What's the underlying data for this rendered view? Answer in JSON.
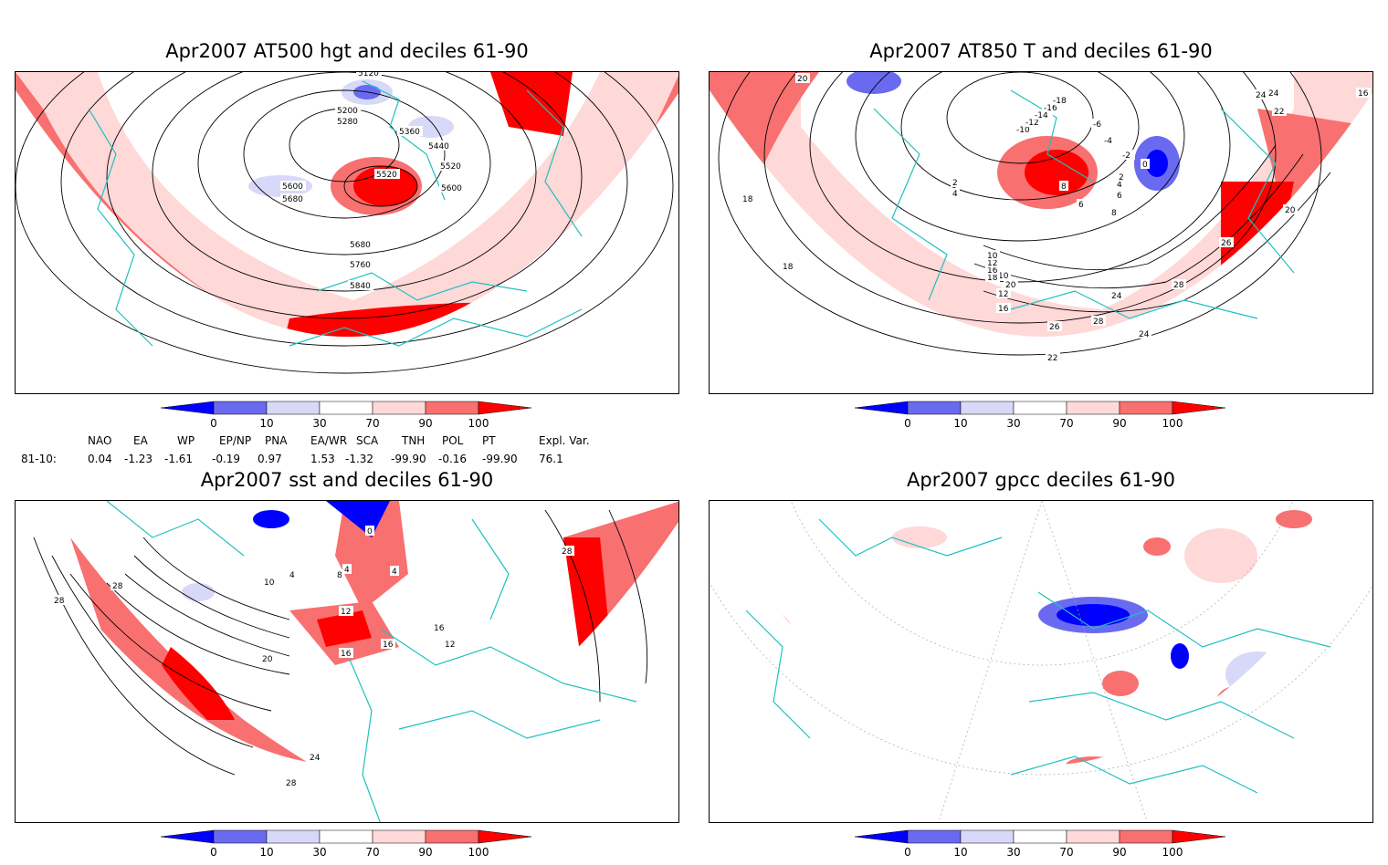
{
  "panels": [
    {
      "title": "Apr2007 AT500 hgt and deciles 61-90",
      "contour_labels": [
        "5120",
        "5200",
        "5280",
        "5360",
        "5440",
        "5520",
        "5600",
        "5680",
        "5520",
        "5600",
        "5680",
        "5760",
        "5840"
      ]
    },
    {
      "title": "Apr2007 AT850 T and deciles 61-90",
      "contour_labels": [
        "20",
        "18",
        "18",
        "16",
        "12",
        "10",
        "8",
        "6",
        "4",
        "2",
        "0",
        "2",
        "4",
        "6",
        "8",
        "-10",
        "-12",
        "-14",
        "-16",
        "-18",
        "-2",
        "-4",
        "-6",
        "24",
        "24",
        "22",
        "16",
        "20",
        "26",
        "24",
        "28",
        "28",
        "26",
        "24",
        "22",
        "20",
        "18",
        "16",
        "12",
        "10"
      ]
    },
    {
      "title": "Apr2007 sst and deciles 61-90",
      "contour_labels": [
        "28",
        "28",
        "20",
        "24",
        "28",
        "16",
        "16",
        "12",
        "8",
        "10",
        "4",
        "4",
        "0",
        "4",
        "16",
        "12",
        "28"
      ]
    },
    {
      "title": "Apr2007 gpcc deciles 61-90",
      "contour_labels": []
    }
  ],
  "colorbar": {
    "ticks": [
      "0",
      "10",
      "30",
      "70",
      "90",
      "100"
    ],
    "colors": [
      "#0000ff",
      "#6a6af0",
      "#d8d8f8",
      "#ffffff",
      "#ffd8d8",
      "#f87070",
      "#ff0000"
    ]
  },
  "indices": {
    "headers": [
      "NAO",
      "EA",
      "WP",
      "EP/NP",
      "PNA",
      "EA/WR",
      "SCA",
      "TNH",
      "POL",
      "PT",
      "Expl. Var."
    ],
    "row_label": "81-10:",
    "values": [
      "0.04",
      "-1.23",
      "-1.61",
      "-0.19",
      "0.97",
      "1.53",
      "-1.32",
      "-99.90",
      "-0.16",
      "-99.90",
      "76.1"
    ]
  },
  "colors": {
    "coast": "#20c0c0",
    "red": "#ff0000",
    "mid_red": "#f87070",
    "light_red": "#ffd8d8",
    "blue": "#0000ff",
    "mid_blue": "#6a6af0",
    "light_blue": "#d8d8f8"
  }
}
